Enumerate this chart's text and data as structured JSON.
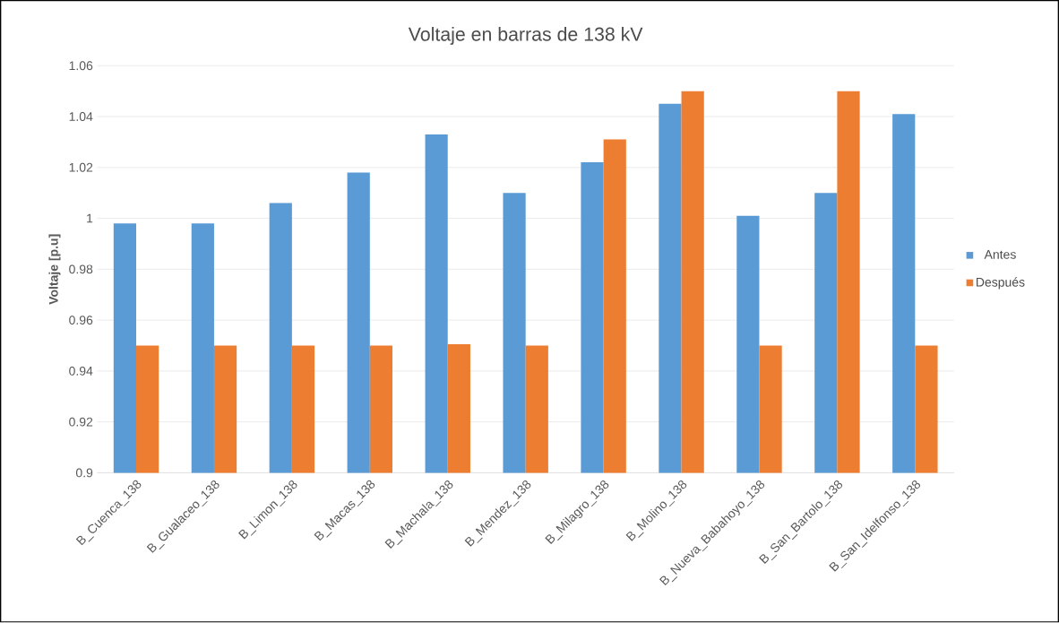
{
  "chart_data": {
    "type": "bar",
    "title": "Voltaje en barras de 138 kV",
    "ylabel": "Voltaje [p.u]",
    "categories": [
      "B_Cuenca_138",
      "B_Gualaceo_138",
      "B_Limon_138",
      "B_Macas_138",
      "B_Machala_138",
      "B_Mendez_138",
      "B_Milagro_138",
      "B_Molino_138",
      "B_Nueva_Babahoyo_138",
      "B_San_Bartolo_138",
      "B_San_Idelfonso_138"
    ],
    "series": [
      {
        "name": "Antes",
        "color": "#5b9bd5",
        "values": [
          0.998,
          0.998,
          1.006,
          1.018,
          1.033,
          1.01,
          1.022,
          1.045,
          1.001,
          1.01,
          1.041
        ]
      },
      {
        "name": "Después",
        "color": "#ed7d31",
        "values": [
          0.95,
          0.95,
          0.95,
          0.95,
          0.9505,
          0.95,
          1.031,
          1.05,
          0.95,
          1.05,
          0.95
        ]
      }
    ],
    "ylim": [
      0.9,
      1.06
    ],
    "yticks": [
      0.9,
      0.92,
      0.94,
      0.96,
      0.98,
      1,
      1.02,
      1.04,
      1.06
    ],
    "grid": "y",
    "legend": "right"
  }
}
